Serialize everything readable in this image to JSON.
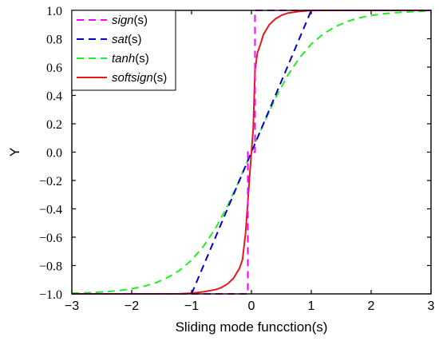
{
  "chart_data": {
    "type": "line",
    "xlabel": "Sliding mode funcction(s)",
    "ylabel": "Y",
    "xlim": [
      -3,
      3
    ],
    "ylim": [
      -1,
      1
    ],
    "xticks": [
      -3,
      -2,
      -1,
      0,
      1,
      2,
      3
    ],
    "xtick_labels": [
      "−3",
      "−2",
      "−1",
      "0",
      "1",
      "2",
      "3"
    ],
    "yticks": [
      1.0,
      0.8,
      0.6,
      0.4,
      0.2,
      0.0,
      -0.2,
      -0.4,
      -0.6,
      -0.8,
      -1.0
    ],
    "ytick_labels": [
      "1.0",
      "0.8",
      "0.6",
      "0.4",
      "0.2",
      "0.0",
      "−0.2",
      "−0.4",
      "−0.6",
      "−0.8",
      "−1.0"
    ],
    "grid": false,
    "legend_position": "top-left",
    "series": [
      {
        "name": "sign(s)",
        "legend_italic": "sign",
        "legend_suffix": "(s)",
        "color": "#ff00ff",
        "dash": "dashed",
        "x": [
          -3,
          -0.06,
          -0.06,
          0.06,
          0.06,
          3
        ],
        "y": [
          -1,
          -1,
          0,
          0,
          1,
          1
        ]
      },
      {
        "name": "sat(s)",
        "legend_italic": "sat",
        "legend_suffix": "(s)",
        "color": "#0000cc",
        "dash": "dashed",
        "x": [
          -3,
          -1,
          1,
          3
        ],
        "y": [
          -1,
          -1,
          1,
          1
        ]
      },
      {
        "name": "tanh(s)",
        "legend_italic": "tanh",
        "legend_suffix": "(s)",
        "color": "#22ee22",
        "dash": "dashed",
        "x": [
          -3,
          -2.8,
          -2.6,
          -2.4,
          -2.2,
          -2.0,
          -1.8,
          -1.6,
          -1.4,
          -1.2,
          -1.0,
          -0.8,
          -0.6,
          -0.4,
          -0.2,
          0,
          0.2,
          0.4,
          0.6,
          0.8,
          1.0,
          1.2,
          1.4,
          1.6,
          1.8,
          2.0,
          2.2,
          2.4,
          2.6,
          2.8,
          3.0
        ],
        "y": [
          -0.995,
          -0.993,
          -0.989,
          -0.984,
          -0.976,
          -0.964,
          -0.947,
          -0.922,
          -0.885,
          -0.834,
          -0.762,
          -0.664,
          -0.537,
          -0.38,
          -0.197,
          0,
          0.197,
          0.38,
          0.537,
          0.664,
          0.762,
          0.834,
          0.885,
          0.922,
          0.947,
          0.964,
          0.976,
          0.984,
          0.989,
          0.993,
          0.995
        ]
      },
      {
        "name": "softsign(s)",
        "legend_italic": "softsign",
        "legend_suffix": "(s)",
        "color": "#e31a1c",
        "dash": "solid",
        "x": [
          -3,
          -1.2,
          -1.0,
          -0.8,
          -0.6,
          -0.5,
          -0.4,
          -0.3,
          -0.2,
          -0.15,
          -0.1,
          -0.06,
          -0.03,
          0,
          0.03,
          0.06,
          0.1,
          0.15,
          0.2,
          0.3,
          0.4,
          0.5,
          0.6,
          0.8,
          1.0,
          1.2,
          3
        ],
        "y": [
          -1,
          -0.999,
          -0.995,
          -0.985,
          -0.97,
          -0.955,
          -0.93,
          -0.89,
          -0.82,
          -0.76,
          -0.58,
          -0.35,
          -0.17,
          0,
          0.17,
          0.58,
          0.7,
          0.76,
          0.83,
          0.9,
          0.94,
          0.965,
          0.98,
          0.993,
          0.999,
          1,
          1
        ]
      }
    ]
  }
}
